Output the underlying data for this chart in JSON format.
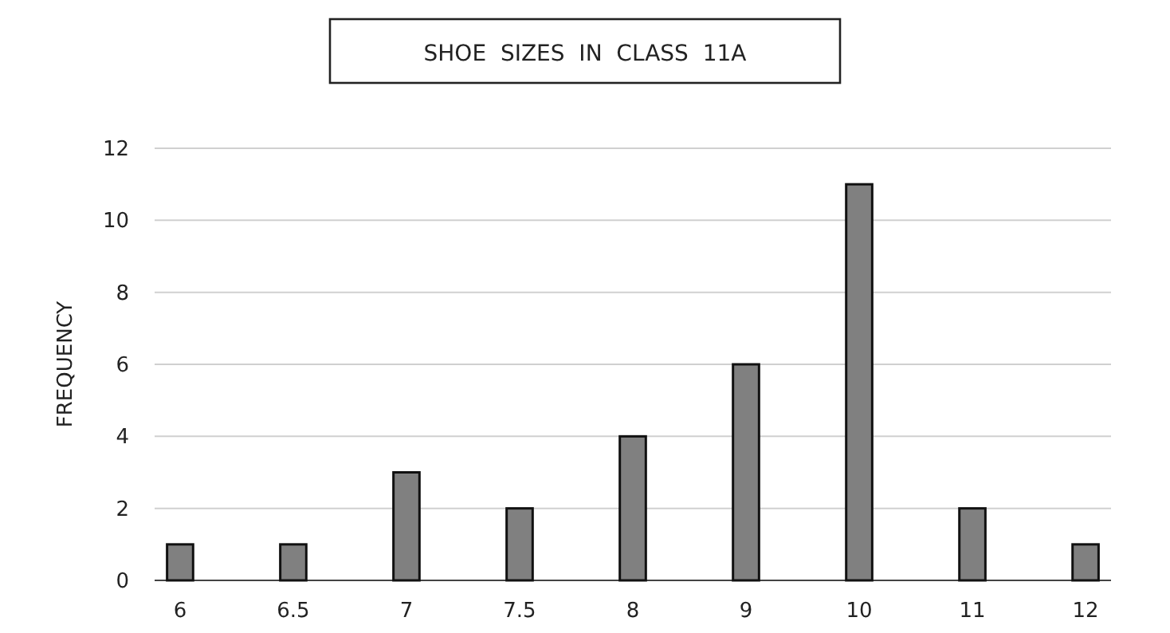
{
  "chart_data": {
    "type": "bar",
    "title": "SHOE  SIZES  IN  CLASS  11A",
    "ylabel": "FREQUENCY",
    "categories": [
      "6",
      "6.5",
      "7",
      "7.5",
      "8",
      "9",
      "10",
      "11",
      "12"
    ],
    "values": [
      1,
      1,
      3,
      2,
      4,
      6,
      11,
      2,
      1
    ],
    "color": "#808080",
    "ylim": [
      0,
      12
    ],
    "yticks": [
      0,
      2,
      4,
      6,
      8,
      10,
      12
    ],
    "grid": "y"
  }
}
